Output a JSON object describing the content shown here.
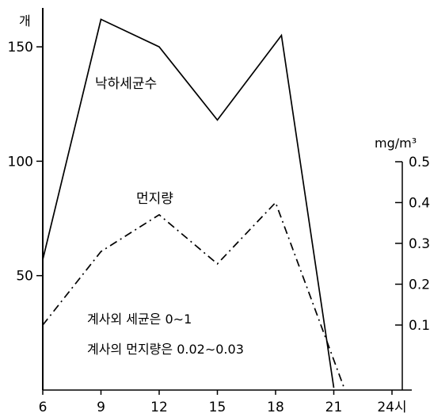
{
  "chart_data": {
    "type": "line",
    "x_ticks": [
      "6",
      "9",
      "12",
      "15",
      "18",
      "21",
      "24시"
    ],
    "left_axis": {
      "unit": "개",
      "ticks": [
        "50",
        "100",
        "150"
      ],
      "ylim": [
        0,
        167
      ]
    },
    "right_axis": {
      "unit": "mg/m³",
      "ticks": [
        "0.1",
        "0.2",
        "0.3",
        "0.4",
        "0.5"
      ],
      "ylim": [
        -0.1,
        0.5
      ]
    },
    "series": [
      {
        "name": "낙하세균수",
        "axis": "left",
        "style": "solid",
        "x": [
          6,
          9,
          12,
          15,
          18.3,
          21
        ],
        "y": [
          57,
          162,
          150,
          118,
          155,
          1
        ]
      },
      {
        "name": "먼지량",
        "axis": "right",
        "style": "dashdot",
        "x": [
          6,
          9,
          12,
          15,
          18,
          21.5
        ],
        "y": [
          0.1,
          0.28,
          0.37,
          0.25,
          0.4,
          -0.05
        ]
      }
    ],
    "annotations": [
      "계사외 세균은 0∼1",
      "계사의 먼지량은 0.02∼0.03"
    ],
    "grid": false,
    "legend": "none"
  }
}
